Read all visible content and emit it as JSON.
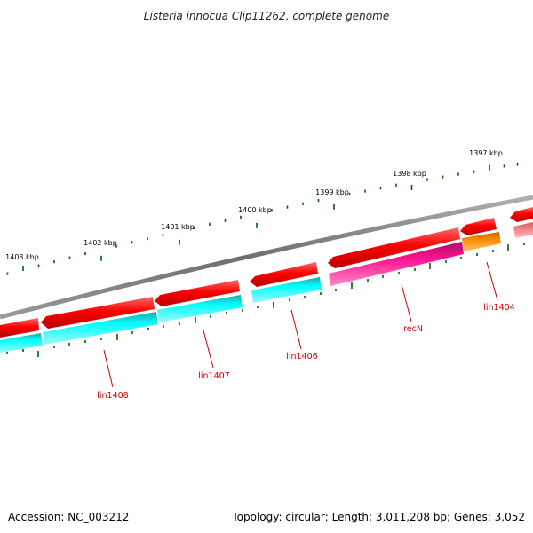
{
  "title": "Listeria innocua Clip11262, complete genome",
  "footer": {
    "accession": "Accession: NC_003212",
    "summary": "Topology: circular; Length: 3,011,208 bp; Genes: 3,052"
  },
  "kbp_labels": [
    "1397 kbp",
    "1398 kbp",
    "1399 kbp",
    "1400 kbp",
    "1401 kbp",
    "1402 kbp",
    "1403 kbp"
  ],
  "gene_labels": [
    "lin1404",
    "recN",
    "lin1406",
    "lin1407",
    "lin1408"
  ],
  "colors": {
    "backbone": "#7f7f7f",
    "forward_strand": "#ff0000",
    "cyan_gene": "#00ffff",
    "recN_gene": "#ff1493",
    "lin1404_gene": "#ff8c00",
    "faded_gene": "#f08080",
    "tick": "#006400",
    "label": "#cc0000"
  }
}
